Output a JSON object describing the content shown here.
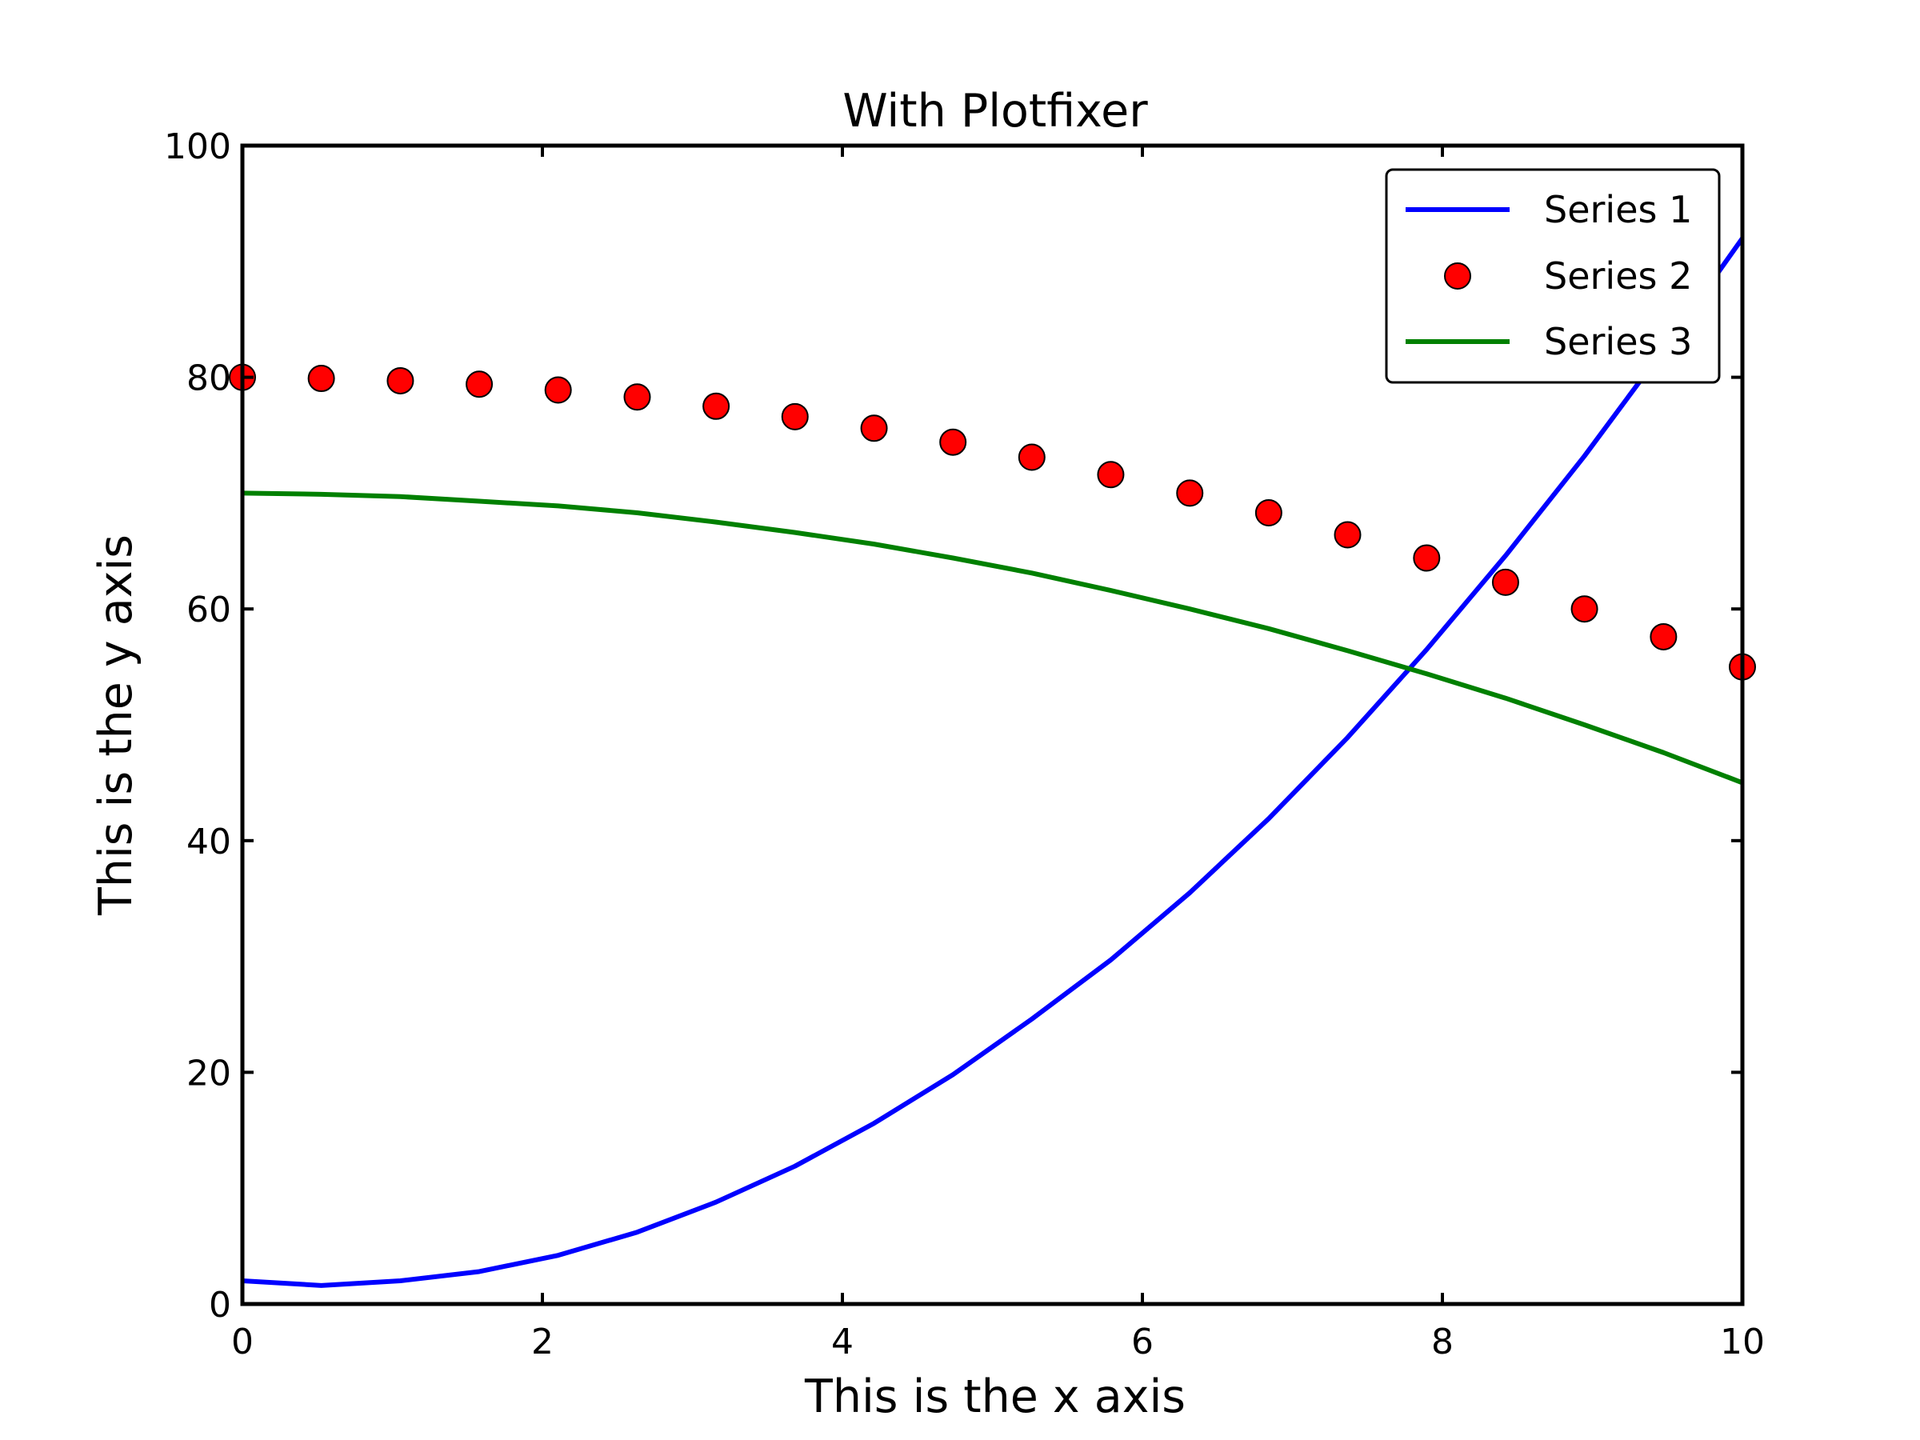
{
  "chart_data": {
    "type": "line",
    "title": "With Plotfixer",
    "xlabel": "This is the x axis",
    "ylabel": "This is the y axis",
    "xlim": [
      0,
      10
    ],
    "ylim": [
      0,
      100
    ],
    "x_ticks": [
      "0",
      "2",
      "4",
      "6",
      "8",
      "10"
    ],
    "y_ticks": [
      "0",
      "20",
      "40",
      "60",
      "80",
      "100"
    ],
    "legend_position": "top-right",
    "grid": false,
    "x": [
      0,
      0.526,
      1.053,
      1.579,
      2.105,
      2.632,
      3.158,
      3.684,
      4.211,
      4.737,
      5.263,
      5.789,
      6.316,
      6.842,
      7.368,
      7.895,
      8.421,
      8.947,
      9.474,
      10
    ],
    "series": [
      {
        "name": "Series 1",
        "style": "line",
        "color": "#0000ff",
        "values": [
          2.0,
          1.6,
          2.0,
          2.8,
          4.2,
          6.2,
          8.8,
          11.9,
          15.6,
          19.8,
          24.6,
          29.7,
          35.5,
          41.9,
          48.9,
          56.5,
          64.6,
          73.2,
          82.4,
          92.0
        ]
      },
      {
        "name": "Series 2",
        "style": "markers",
        "color": "#ff0000",
        "values": [
          80.0,
          79.9,
          79.7,
          79.4,
          78.9,
          78.3,
          77.5,
          76.6,
          75.6,
          74.4,
          73.1,
          71.6,
          70.0,
          68.3,
          66.4,
          64.4,
          62.3,
          60.0,
          57.6,
          55.0
        ]
      },
      {
        "name": "Series 3",
        "style": "line",
        "color": "#008000",
        "values": [
          70.0,
          69.9,
          69.7,
          69.3,
          68.9,
          68.3,
          67.5,
          66.6,
          65.6,
          64.4,
          63.1,
          61.6,
          60.0,
          58.3,
          56.4,
          54.4,
          52.3,
          50.0,
          47.6,
          45.0
        ]
      }
    ]
  }
}
